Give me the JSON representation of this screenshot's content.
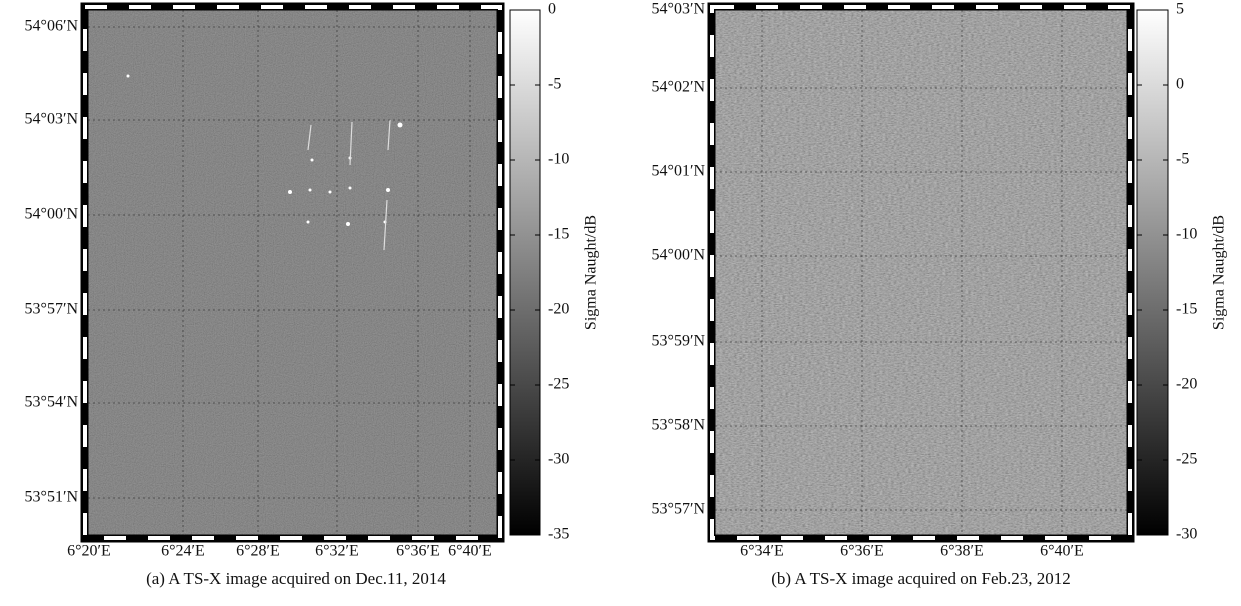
{
  "panels": [
    {
      "lat_labels": [
        "54°06′N",
        "54°03′N",
        "54°00′N",
        "53°57′N",
        "53°54′N",
        "53°51′N"
      ],
      "lon_labels": [
        "6°20′E",
        "6°24′E",
        "6°28′E",
        "6°32′E",
        "6°36′E",
        "6°40′E"
      ],
      "colorbar": {
        "label": "Sigma Naught/dB",
        "clim": [
          -35,
          0
        ],
        "ticks": [
          0,
          -5,
          -10,
          -15,
          -20,
          -25,
          -30,
          -35
        ]
      },
      "caption": "(a) A TS-X image acquired on Dec.11, 2014"
    },
    {
      "lat_labels": [
        "54°03′N",
        "54°02′N",
        "54°01′N",
        "54°00′N",
        "53°59′N",
        "53°58′N",
        "53°57′N"
      ],
      "lon_labels": [
        "6°34′E",
        "6°36′E",
        "6°38′E",
        "6°40′E"
      ],
      "colorbar": {
        "label": "Sigma Naught/dB",
        "clim": [
          -30,
          5
        ],
        "ticks": [
          5,
          0,
          -5,
          -10,
          -15,
          -20,
          -25,
          -30
        ]
      },
      "caption": "(b) A TS-X image acquired on Feb.23, 2012"
    }
  ]
}
